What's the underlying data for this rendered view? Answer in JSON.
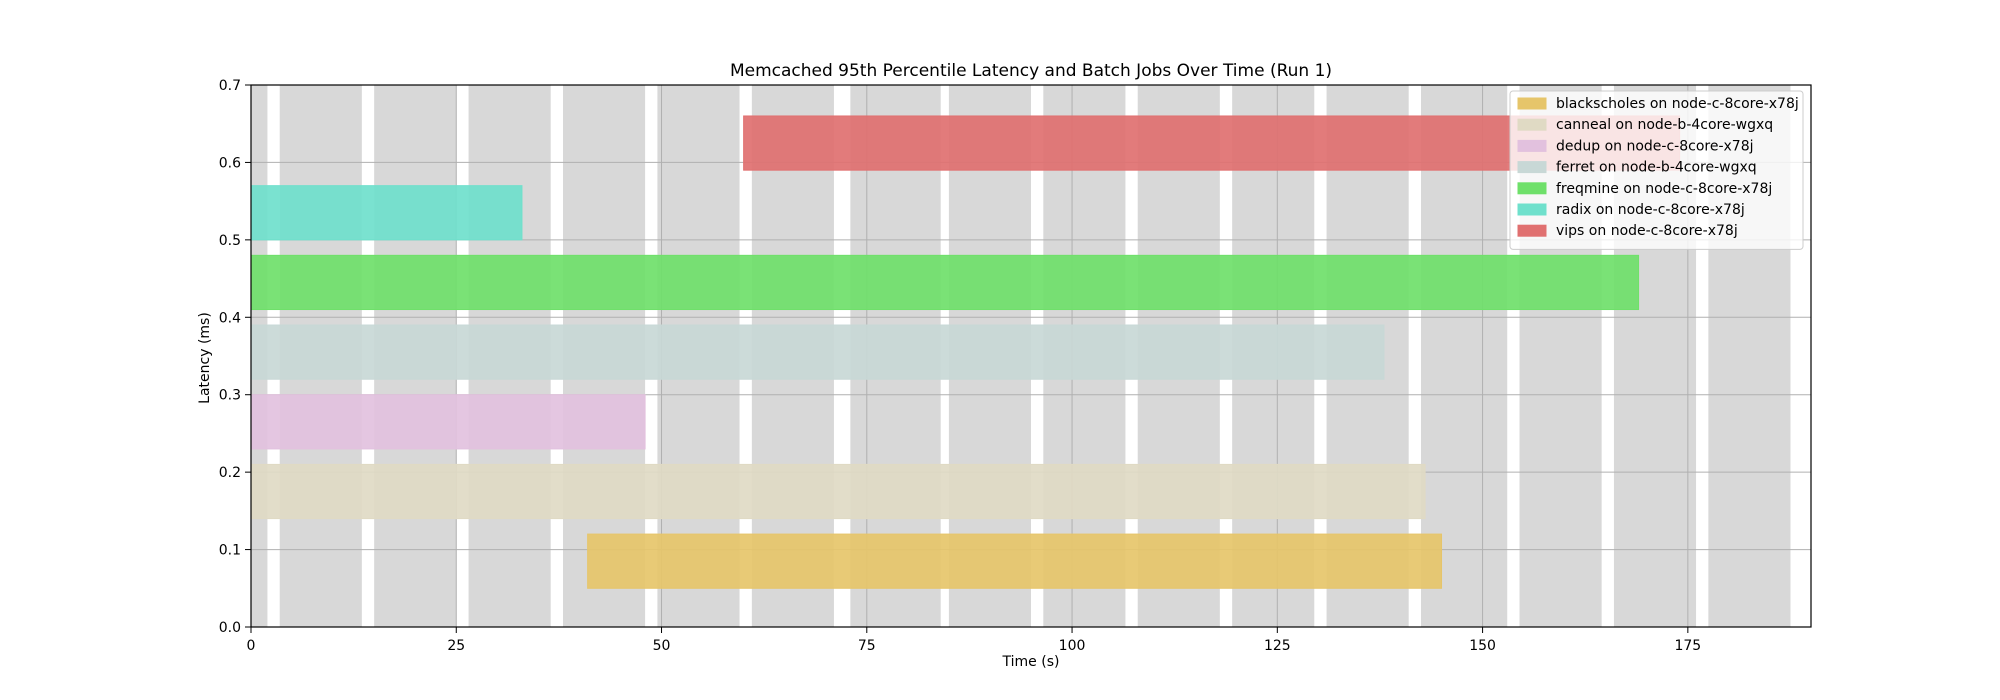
{
  "chart_data": {
    "type": "bar",
    "subtype": "horizontal-timeline",
    "title": "Memcached 95th Percentile Latency and Batch Jobs Over Time (Run 1)",
    "xlabel": "Time (s)",
    "ylabel": "Latency (ms)",
    "xlim": [
      0,
      190
    ],
    "ylim": [
      0,
      0.7
    ],
    "xticks": [
      "0",
      "25",
      "50",
      "75",
      "100",
      "125",
      "150",
      "175"
    ],
    "xtick_values": [
      0,
      25,
      50,
      75,
      100,
      125,
      150,
      175
    ],
    "yticks": [
      "0.0",
      "0.1",
      "0.2",
      "0.3",
      "0.4",
      "0.5",
      "0.6",
      "0.7"
    ],
    "ytick_values": [
      0.0,
      0.1,
      0.2,
      0.3,
      0.4,
      0.5,
      0.6,
      0.7
    ],
    "grid": true,
    "legend_position": "top-right",
    "background_bands": [
      [
        0,
        2
      ],
      [
        3.5,
        13.5
      ],
      [
        15,
        25
      ],
      [
        26.5,
        36.5
      ],
      [
        38,
        48
      ],
      [
        49.5,
        59.5
      ],
      [
        61,
        71
      ],
      [
        73,
        84
      ],
      [
        85,
        95
      ],
      [
        96.5,
        106.5
      ],
      [
        108,
        118
      ],
      [
        119.5,
        129.5
      ],
      [
        131,
        141
      ],
      [
        142.5,
        153
      ],
      [
        154.5,
        164.5
      ],
      [
        166,
        176
      ],
      [
        177.5,
        187.5
      ]
    ],
    "background_band_color": "#d8d8d8",
    "jobs": [
      {
        "name": "blackscholes on node-c-8core-x78j",
        "start": 41,
        "end": 145,
        "y_low": 0.05,
        "y_high": 0.12,
        "color": "#e6c56a"
      },
      {
        "name": "canneal on node-b-4core-wgxq",
        "start": 0,
        "end": 143,
        "y_low": 0.14,
        "y_high": 0.21,
        "color": "#e0dac4"
      },
      {
        "name": "dedup on node-c-8core-x78j",
        "start": 0,
        "end": 48,
        "y_low": 0.23,
        "y_high": 0.3,
        "color": "#e2c1de"
      },
      {
        "name": "ferret on node-b-4core-wgxq",
        "start": 0,
        "end": 138,
        "y_low": 0.32,
        "y_high": 0.39,
        "color": "#c8d8d6"
      },
      {
        "name": "freqmine on node-c-8core-x78j",
        "start": 0,
        "end": 169,
        "y_low": 0.41,
        "y_high": 0.48,
        "color": "#6fe06a"
      },
      {
        "name": "radix on node-c-8core-x78j",
        "start": 0,
        "end": 33,
        "y_low": 0.5,
        "y_high": 0.57,
        "color": "#6fe0cc"
      },
      {
        "name": "vips on node-c-8core-x78j",
        "start": 60,
        "end": 174,
        "y_low": 0.59,
        "y_high": 0.66,
        "color": "#e07070"
      }
    ]
  }
}
